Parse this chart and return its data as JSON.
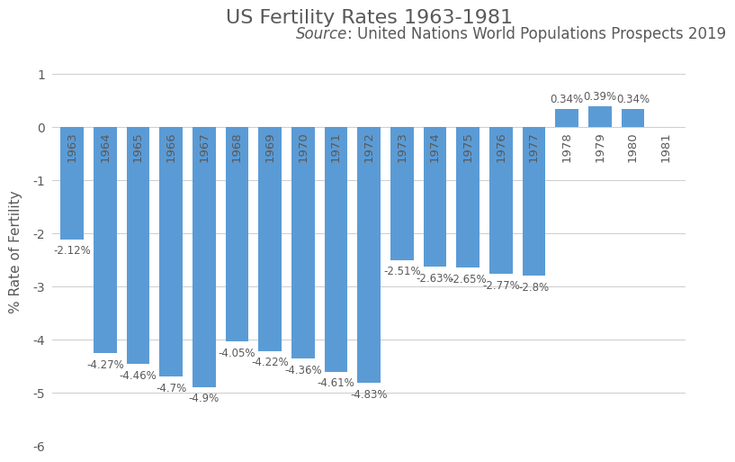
{
  "title": "US Fertility Rates 1963-1981",
  "subtitle_italic": "Source",
  "subtitle_rest": ": United Nations World Populations Prospects 2019",
  "ylabel": "% Rate of Fertility",
  "years": [
    1963,
    1964,
    1965,
    1966,
    1967,
    1968,
    1969,
    1970,
    1971,
    1972,
    1973,
    1974,
    1975,
    1976,
    1977,
    1978,
    1979,
    1980,
    1981
  ],
  "values": [
    -2.12,
    -4.27,
    -4.46,
    -4.7,
    -4.9,
    -4.05,
    -4.22,
    -4.36,
    -4.61,
    -4.83,
    -2.51,
    -2.63,
    -2.65,
    -2.77,
    -2.8,
    0.34,
    0.39,
    0.34,
    0.0
  ],
  "bar_color": "#5B9BD5",
  "ylim_min": -6,
  "ylim_max": 1.3,
  "yticks": [
    -6,
    -5,
    -4,
    -3,
    -2,
    -1,
    0,
    1
  ],
  "title_fontsize": 16,
  "subtitle_fontsize": 12,
  "ylabel_fontsize": 11,
  "bar_label_fontsize": 8.5,
  "year_label_fontsize": 9.5,
  "tick_label_fontsize": 10,
  "background_color": "#FFFFFF",
  "grid_color": "#D0D0D0",
  "text_color": "#595959",
  "label_offsets": {
    "1963": -0.1,
    "1964": -0.1,
    "1965": -0.1,
    "1966": -0.1,
    "1967": -0.1,
    "1968": -0.1,
    "1969": -0.1,
    "1970": -0.1,
    "1971": -0.1,
    "1972": -0.1,
    "1973": -0.1,
    "1974": -0.1,
    "1975": -0.1,
    "1976": -0.1,
    "1977": -0.1
  }
}
